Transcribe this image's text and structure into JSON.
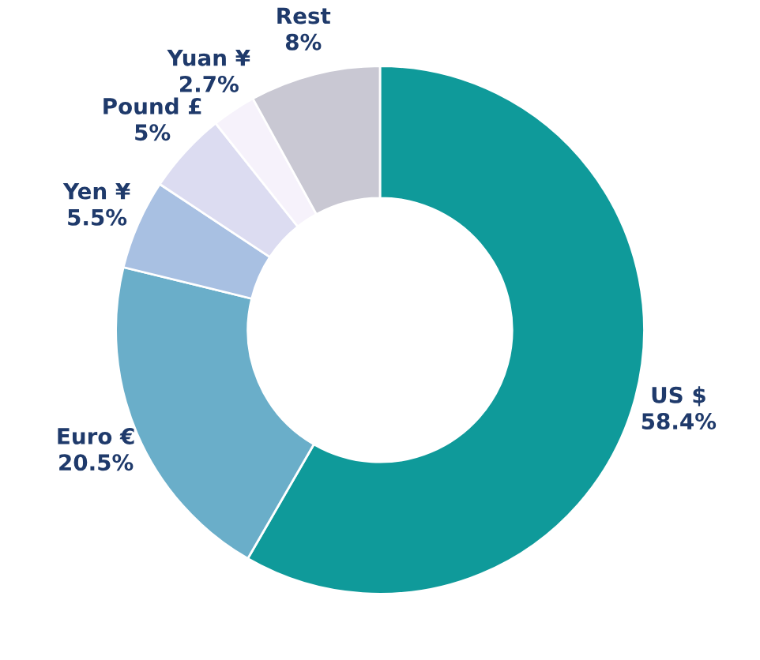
{
  "chart_data": {
    "type": "donut",
    "categories": [
      "US $",
      "Euro €",
      "Yen ¥",
      "Pound £",
      "Yuan ¥",
      "Rest"
    ],
    "values": [
      58.4,
      20.5,
      5.5,
      5,
      2.7,
      8
    ],
    "colors": [
      "#0f9a9a",
      "#6aaec9",
      "#a8c0e2",
      "#dcdcf1",
      "#f6f2fb",
      "#c9c8d3"
    ],
    "value_labels": [
      "58.4%",
      "20.5%",
      "5.5%",
      "5%",
      "2.7%",
      "8%"
    ],
    "legend": false
  }
}
